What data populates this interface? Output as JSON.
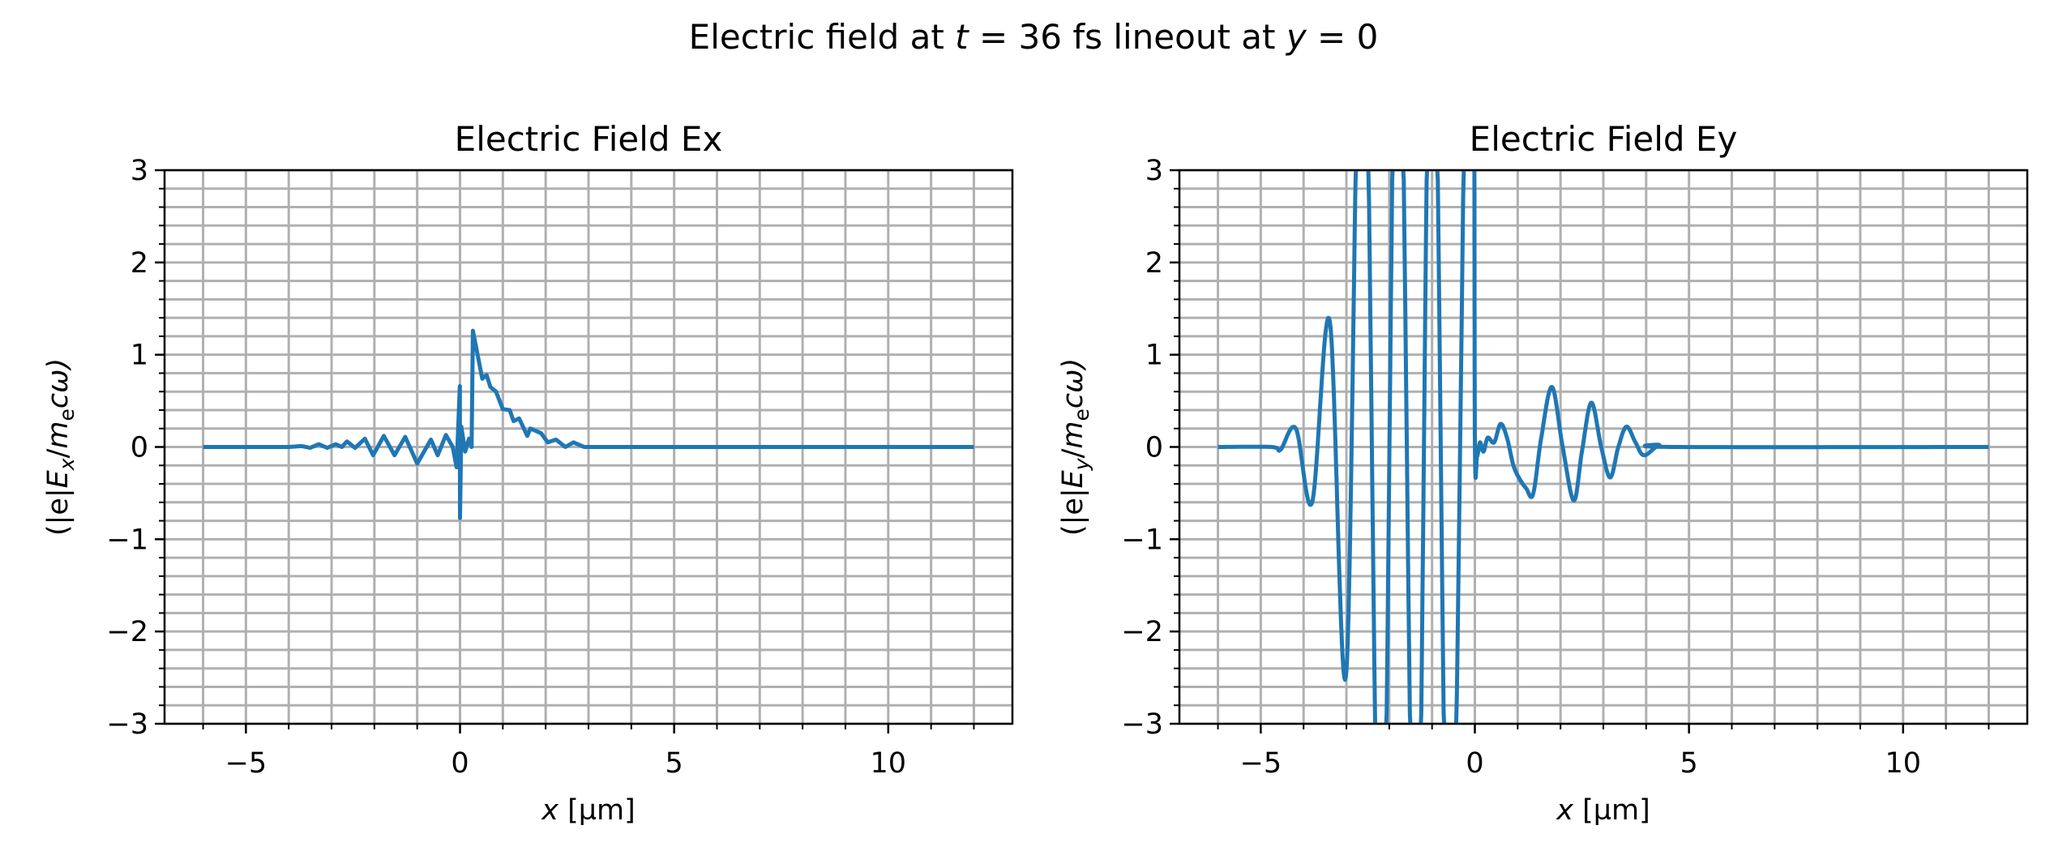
{
  "suptitle": {
    "pre": "Electric field at ",
    "var1": "t",
    "mid": " = 36 fs lineout at ",
    "var2": "y",
    "post": " = 0"
  },
  "colors": {
    "line": "#1f77b4",
    "grid": "#b0b0b0",
    "axis": "#000000"
  },
  "chart_data": [
    {
      "type": "line",
      "title": "Electric Field Ex",
      "xlabel": {
        "var": "x",
        "unit": " [µm]"
      },
      "ylabel": {
        "open": "(|e|",
        "E": "E",
        "sub": "x",
        "slash": "/",
        "m": "m",
        "msub": "e",
        "rest": "cω)"
      },
      "xlim": [
        -6.9,
        12.9
      ],
      "ylim": [
        -3,
        3
      ],
      "xticks": [
        -5,
        0,
        5,
        10
      ],
      "xtick_labels": [
        "−5",
        "0",
        "5",
        "10"
      ],
      "yticks": [
        -3,
        -2,
        -1,
        0,
        1,
        2,
        3
      ],
      "ytick_labels": [
        "−3",
        "−2",
        "−1",
        "0",
        "1",
        "2",
        "3"
      ],
      "grid": "major and minor",
      "x": [
        -6,
        -4,
        -3.7,
        -3.5,
        -3.3,
        -3.1,
        -2.9,
        -2.76,
        -2.64,
        -2.45,
        -2.22,
        -2.03,
        -1.78,
        -1.53,
        -1.28,
        -1.0,
        -0.68,
        -0.52,
        -0.33,
        -0.17,
        -0.08,
        -0.005,
        0.0,
        0.03,
        0.12,
        0.21,
        0.27,
        0.3,
        0.52,
        0.62,
        0.71,
        0.84,
        1.0,
        1.16,
        1.25,
        1.38,
        1.57,
        1.64,
        1.89,
        2.05,
        2.24,
        2.46,
        2.65,
        2.9,
        4.8,
        12
      ],
      "y": [
        0,
        0,
        0.01,
        -0.01,
        0.03,
        -0.01,
        0.03,
        0,
        0.06,
        -0.01,
        0.09,
        -0.09,
        0.12,
        -0.09,
        0.11,
        -0.18,
        0.08,
        -0.09,
        0.13,
        0,
        -0.22,
        0.66,
        -0.77,
        0.22,
        -0.05,
        0.09,
        0,
        1.26,
        0.74,
        0.78,
        0.65,
        0.6,
        0.41,
        0.4,
        0.28,
        0.31,
        0.12,
        0.2,
        0.15,
        0.05,
        0.08,
        0,
        0.05,
        0,
        0,
        0
      ]
    },
    {
      "type": "line",
      "title": "Electric Field Ey",
      "xlabel": {
        "var": "x",
        "unit": " [µm]"
      },
      "ylabel": {
        "open": "(|e|",
        "E": "E",
        "sub": "y",
        "slash": "/",
        "m": "m",
        "msub": "e",
        "rest": "cω)"
      },
      "xlim": [
        -6.9,
        12.9
      ],
      "ylim": [
        -3,
        3
      ],
      "xticks": [
        -5,
        0,
        5,
        10
      ],
      "xtick_labels": [
        "−5",
        "0",
        "5",
        "10"
      ],
      "yticks": [
        -3,
        -2,
        -1,
        0,
        1,
        2,
        3
      ],
      "ytick_labels": [
        "−3",
        "−2",
        "−1",
        "0",
        "1",
        "2",
        "3"
      ],
      "grid": "major and minor",
      "x": [
        -6,
        -4.75,
        -4.54,
        -4.18,
        -3.8,
        -3.39,
        -3.0,
        -2.61,
        -2.19,
        -1.8,
        -1.38,
        -1.0,
        -0.59,
        -0.17,
        -0.03,
        0.0,
        0.05,
        0.12,
        0.2,
        0.3,
        0.45,
        0.6,
        0.75,
        0.9,
        1.05,
        1.2,
        1.36,
        1.55,
        1.8,
        2.05,
        2.31,
        2.5,
        2.72,
        2.95,
        3.16,
        3.35,
        3.54,
        3.75,
        3.95,
        4.3,
        4.6,
        12
      ],
      "y": [
        0,
        0,
        -0.03,
        0.2,
        -0.6,
        1.37,
        -2.43,
        6,
        -6,
        6,
        -6,
        6,
        -6,
        6,
        5,
        0.1,
        -0.1,
        0.05,
        -0.05,
        0.1,
        0.05,
        0.25,
        0.1,
        -0.2,
        -0.35,
        -0.45,
        -0.51,
        0.1,
        0.65,
        0.0,
        -0.58,
        -0.05,
        0.48,
        0.0,
        -0.33,
        0.0,
        0.22,
        0.05,
        -0.09,
        0.02,
        0,
        0
      ]
    }
  ]
}
